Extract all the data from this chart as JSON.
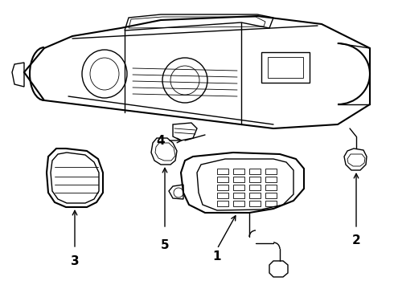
{
  "background_color": "#ffffff",
  "line_color": "#000000",
  "lw": 1.0,
  "lw_thin": 0.6,
  "lw_thick": 1.5,
  "label_fontsize": 11,
  "label_fontweight": "bold",
  "figsize": [
    4.9,
    3.6
  ],
  "dpi": 100,
  "xlim": [
    0,
    490
  ],
  "ylim": [
    0,
    360
  ]
}
